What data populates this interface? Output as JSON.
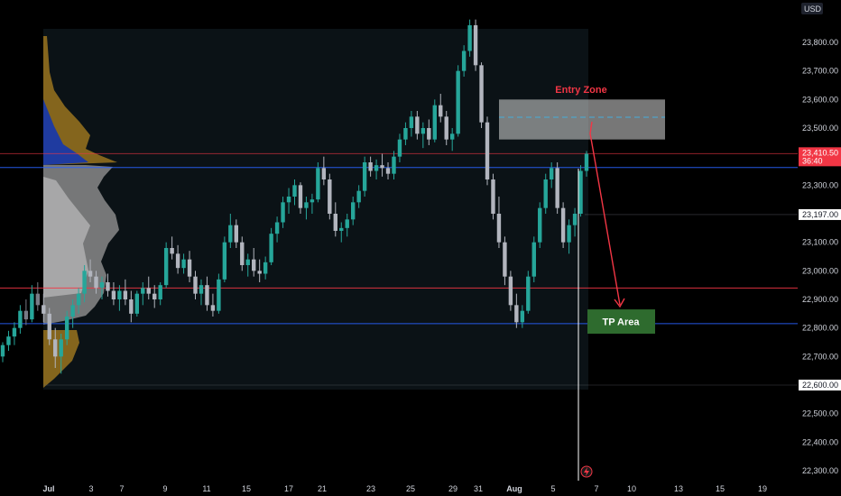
{
  "currency": "USD",
  "chart_data": {
    "type": "candlestick",
    "y_range": [
      22250,
      23950
    ],
    "price_ticks": [
      "23,800.00",
      "23,700.00",
      "23,600.00",
      "23,500.00",
      "23,300.00",
      "23,100.00",
      "23,000.00",
      "22,900.00",
      "22,800.00",
      "22,700.00",
      "22,500.00",
      "22,400.00",
      "22,300.00"
    ],
    "price_ticks_values": [
      23800,
      23700,
      23600,
      23500,
      23300,
      23100,
      23000,
      22900,
      22800,
      22700,
      22500,
      22400,
      22300
    ],
    "date_ticks": [
      "Jul",
      "3",
      "7",
      "9",
      "11",
      "15",
      "17",
      "21",
      "23",
      "25",
      "29",
      "31",
      "Aug",
      "5",
      "7",
      "10",
      "13",
      "15",
      "19"
    ],
    "current_price": {
      "label": "23,410.50",
      "countdown": "36:40",
      "value": 23410.5
    },
    "price_labels": [
      {
        "label": "23,197.00",
        "value": 23197
      },
      {
        "label": "22,600.00",
        "value": 22600
      }
    ],
    "horizontal_lines": [
      {
        "value": 23362,
        "color": "#2962ff"
      },
      {
        "value": 22940,
        "color": "#f23645"
      },
      {
        "value": 22815,
        "color": "#2962ff"
      },
      {
        "value": 23410.5,
        "color": "#f23645"
      }
    ],
    "entry_zone": {
      "label": "Entry Zone",
      "low": 23460,
      "high": 23600,
      "mid": 23538,
      "color": "#ffffff",
      "label_color": "#f23645"
    },
    "tp_area": {
      "label": "TP Area",
      "low": 22780,
      "high": 22865,
      "color": "#2e6b2e"
    },
    "candles": [
      [
        22700,
        22750,
        22680,
        22740
      ],
      [
        22740,
        22790,
        22720,
        22770
      ],
      [
        22770,
        22820,
        22740,
        22800
      ],
      [
        22800,
        22880,
        22780,
        22860
      ],
      [
        22860,
        22900,
        22810,
        22830
      ],
      [
        22830,
        22950,
        22820,
        22920
      ],
      [
        22920,
        22960,
        22860,
        22880
      ],
      [
        22880,
        22920,
        22820,
        22850
      ],
      [
        22850,
        22870,
        22740,
        22760
      ],
      [
        22760,
        22800,
        22660,
        22700
      ],
      [
        22700,
        22780,
        22640,
        22760
      ],
      [
        22760,
        22860,
        22740,
        22840
      ],
      [
        22840,
        22900,
        22800,
        22880
      ],
      [
        22880,
        22940,
        22850,
        22920
      ],
      [
        22920,
        23020,
        22890,
        23000
      ],
      [
        23000,
        23040,
        22960,
        22980
      ],
      [
        22980,
        23000,
        22920,
        22940
      ],
      [
        22940,
        22980,
        22900,
        22960
      ],
      [
        22960,
        22990,
        22910,
        22930
      ],
      [
        22930,
        22960,
        22880,
        22900
      ],
      [
        22900,
        22950,
        22860,
        22930
      ],
      [
        22930,
        22970,
        22880,
        22900
      ],
      [
        22900,
        22930,
        22820,
        22850
      ],
      [
        22850,
        22930,
        22840,
        22920
      ],
      [
        22920,
        22960,
        22880,
        22940
      ],
      [
        22940,
        22980,
        22900,
        22920
      ],
      [
        22920,
        22950,
        22870,
        22900
      ],
      [
        22900,
        22960,
        22880,
        22950
      ],
      [
        22950,
        23100,
        22940,
        23080
      ],
      [
        23080,
        23120,
        23040,
        23060
      ],
      [
        23060,
        23090,
        22990,
        23010
      ],
      [
        23010,
        23060,
        22990,
        23040
      ],
      [
        23040,
        23070,
        22960,
        22980
      ],
      [
        22980,
        23000,
        22900,
        22920
      ],
      [
        22920,
        22970,
        22880,
        22950
      ],
      [
        22950,
        22980,
        22860,
        22880
      ],
      [
        22880,
        22920,
        22840,
        22860
      ],
      [
        22860,
        22990,
        22850,
        22970
      ],
      [
        22970,
        23120,
        22960,
        23100
      ],
      [
        23100,
        23200,
        23080,
        23160
      ],
      [
        23160,
        23180,
        23080,
        23100
      ],
      [
        23100,
        23120,
        23000,
        23020
      ],
      [
        23020,
        23060,
        22980,
        23040
      ],
      [
        23040,
        23080,
        22980,
        23000
      ],
      [
        23000,
        23040,
        22960,
        22990
      ],
      [
        22990,
        23050,
        22970,
        23030
      ],
      [
        23030,
        23150,
        23020,
        23130
      ],
      [
        23130,
        23190,
        23100,
        23170
      ],
      [
        23170,
        23260,
        23150,
        23240
      ],
      [
        23240,
        23290,
        23200,
        23260
      ],
      [
        23260,
        23320,
        23230,
        23300
      ],
      [
        23300,
        23310,
        23200,
        23220
      ],
      [
        23220,
        23260,
        23180,
        23240
      ],
      [
        23240,
        23270,
        23200,
        23250
      ],
      [
        23250,
        23380,
        23240,
        23360
      ],
      [
        23360,
        23400,
        23300,
        23320
      ],
      [
        23320,
        23340,
        23180,
        23200
      ],
      [
        23200,
        23240,
        23120,
        23140
      ],
      [
        23140,
        23170,
        23100,
        23150
      ],
      [
        23150,
        23200,
        23120,
        23180
      ],
      [
        23180,
        23260,
        23160,
        23240
      ],
      [
        23240,
        23300,
        23220,
        23280
      ],
      [
        23280,
        23400,
        23260,
        23380
      ],
      [
        23380,
        23400,
        23330,
        23350
      ],
      [
        23350,
        23390,
        23320,
        23370
      ],
      [
        23370,
        23410,
        23330,
        23360
      ],
      [
        23360,
        23380,
        23320,
        23340
      ],
      [
        23340,
        23420,
        23320,
        23400
      ],
      [
        23400,
        23480,
        23380,
        23460
      ],
      [
        23460,
        23520,
        23440,
        23500
      ],
      [
        23500,
        23560,
        23470,
        23540
      ],
      [
        23540,
        23560,
        23460,
        23480
      ],
      [
        23480,
        23520,
        23430,
        23500
      ],
      [
        23500,
        23530,
        23440,
        23460
      ],
      [
        23460,
        23600,
        23450,
        23580
      ],
      [
        23580,
        23620,
        23520,
        23540
      ],
      [
        23540,
        23560,
        23440,
        23460
      ],
      [
        23460,
        23500,
        23420,
        23480
      ],
      [
        23480,
        23720,
        23470,
        23700
      ],
      [
        23700,
        23790,
        23680,
        23770
      ],
      [
        23770,
        23880,
        23750,
        23860
      ],
      [
        23860,
        23880,
        23700,
        23720
      ],
      [
        23720,
        23730,
        23500,
        23520
      ],
      [
        23520,
        23540,
        23300,
        23320
      ],
      [
        23320,
        23340,
        23180,
        23200
      ],
      [
        23200,
        23260,
        23080,
        23100
      ],
      [
        23100,
        23120,
        22950,
        22980
      ],
      [
        22980,
        23000,
        22860,
        22880
      ],
      [
        22880,
        22920,
        22800,
        22820
      ],
      [
        22820,
        22880,
        22800,
        22860
      ],
      [
        22860,
        23000,
        22850,
        22980
      ],
      [
        22980,
        23120,
        22960,
        23100
      ],
      [
        23100,
        23240,
        23080,
        23220
      ],
      [
        23220,
        23340,
        23200,
        23320
      ],
      [
        23320,
        23380,
        23290,
        23360
      ],
      [
        23360,
        23380,
        23200,
        23220
      ],
      [
        23220,
        23240,
        23080,
        23100
      ],
      [
        23100,
        23180,
        23060,
        23160
      ],
      [
        23160,
        23220,
        23120,
        23200
      ],
      [
        23200,
        23370,
        23190,
        23350
      ],
      [
        23350,
        23420,
        23330,
        23410
      ]
    ]
  }
}
